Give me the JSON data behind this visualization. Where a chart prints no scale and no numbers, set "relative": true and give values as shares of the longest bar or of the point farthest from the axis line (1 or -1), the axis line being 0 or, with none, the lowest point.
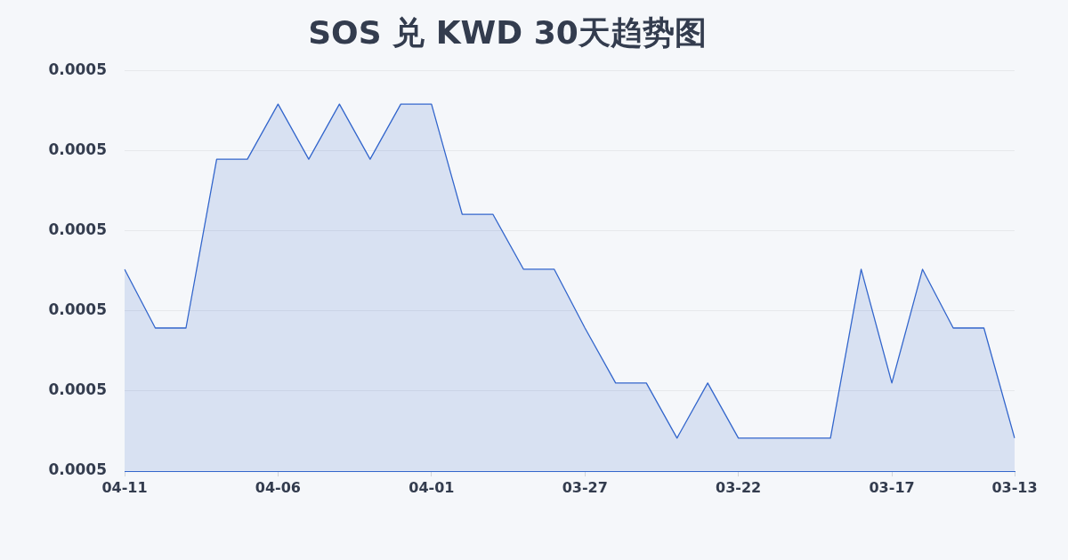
{
  "chart_data": {
    "type": "area",
    "title": "SOS 兑 KWD 30天趋势图",
    "categories": [
      "04-11",
      null,
      null,
      null,
      null,
      "04-06",
      null,
      null,
      null,
      null,
      "04-01",
      null,
      null,
      null,
      null,
      "03-27",
      null,
      null,
      null,
      null,
      "03-22",
      null,
      null,
      null,
      null,
      "03-17",
      null,
      null,
      null,
      "03-13"
    ],
    "series": [
      {
        "color": "#3366cc",
        "values": [
          0.55,
          0.39,
          0.39,
          0.85,
          0.85,
          1,
          0.85,
          1,
          0.85,
          1,
          1,
          0.7,
          0.7,
          0.55,
          0.55,
          0.39,
          0.24,
          0.24,
          0.09,
          0.24,
          0.09,
          0.09,
          0.09,
          0.09,
          0.55,
          0.24,
          0.55,
          0.39,
          0.39,
          0.09
        ]
      }
    ],
    "relative": true,
    "annotations": [
      "0.0005",
      "0.0005",
      "0.0005",
      "0.0005",
      "0.0005",
      "0.0005"
    ],
    "grid": "y",
    "legend": false
  }
}
